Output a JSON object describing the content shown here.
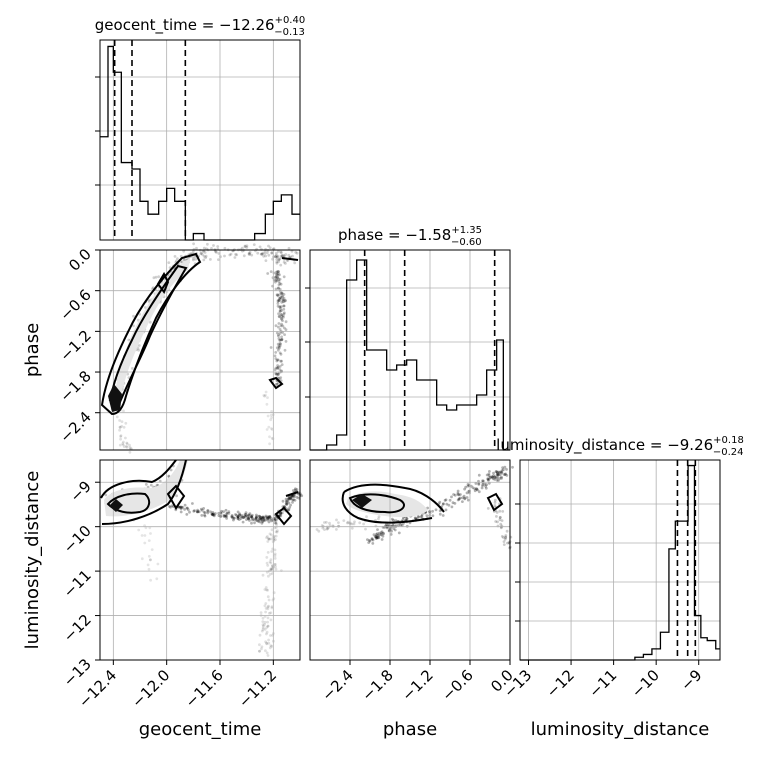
{
  "chart_data": [
    {
      "type": "histogram",
      "panel": "geocent_time",
      "title": {
        "lead": "geocent_time = ",
        "value": "−12.26",
        "plus": "+0.40",
        "minus": "−0.13"
      },
      "xlim": [
        -12.5,
        -11.0
      ],
      "quantile_lines": [
        -12.39,
        -12.26,
        -11.86
      ],
      "bin_edges": [
        -12.5,
        -12.44,
        -12.4,
        -12.34,
        -12.26,
        -12.2,
        -12.14,
        -12.06,
        -12.0,
        -11.94,
        -11.86,
        -11.8,
        -11.72,
        -11.66,
        -11.6,
        -11.54,
        -11.46,
        -11.4,
        -11.34,
        -11.26,
        -11.2,
        -11.14,
        -11.06,
        -11.0
      ],
      "counts": [
        0.16,
        0.3,
        0.26,
        0.12,
        0.11,
        0.06,
        0.04,
        0.06,
        0.08,
        0.06,
        0.0,
        0.01,
        0.0,
        0.0,
        0.0,
        0.0,
        0.0,
        0.0,
        0.01,
        0.04,
        0.06,
        0.07,
        0.04
      ]
    },
    {
      "type": "histogram",
      "panel": "phase",
      "title": {
        "lead": "phase = ",
        "value": "−1.58",
        "plus": "+1.35",
        "minus": "−0.60"
      },
      "xlim": [
        -3.0,
        0.0
      ],
      "quantile_lines": [
        -2.18,
        -1.58,
        -0.23
      ],
      "bin_edges": [
        -3.0,
        -2.9,
        -2.75,
        -2.6,
        -2.45,
        -2.3,
        -2.15,
        -2.0,
        -1.85,
        -1.7,
        -1.55,
        -1.4,
        -1.25,
        -1.1,
        -0.95,
        -0.8,
        -0.65,
        -0.5,
        -0.35,
        -0.2,
        -0.1,
        0.0
      ],
      "counts": [
        0.0,
        0.0,
        0.005,
        0.015,
        0.17,
        0.19,
        0.1,
        0.1,
        0.08,
        0.085,
        0.09,
        0.07,
        0.07,
        0.045,
        0.04,
        0.045,
        0.045,
        0.055,
        0.08,
        0.11,
        0.0
      ]
    },
    {
      "type": "histogram",
      "panel": "luminosity_distance",
      "title": {
        "lead": "luminosity_distance = ",
        "value": "−9.26",
        "plus": "+0.18",
        "minus": "−0.24"
      },
      "xlim": [
        -13.2,
        -8.5
      ],
      "quantile_lines": [
        -9.5,
        -9.26,
        -9.08
      ],
      "bin_edges": [
        -13.2,
        -10.5,
        -10.3,
        -10.1,
        -9.9,
        -9.7,
        -9.55,
        -9.4,
        -9.25,
        -9.1,
        -8.95,
        -8.8,
        -8.6,
        -8.5
      ],
      "counts": [
        0.0,
        0.005,
        0.01,
        0.02,
        0.05,
        0.2,
        0.25,
        0.25,
        0.35,
        0.08,
        0.04,
        0.035,
        0.02
      ]
    },
    {
      "type": "scatter",
      "panel": "geocent_time vs phase",
      "xlim": [
        -12.5,
        -11.0
      ],
      "ylim": [
        -2.95,
        0.0
      ],
      "note": "2D posterior samples with density contours"
    },
    {
      "type": "scatter",
      "panel": "geocent_time vs luminosity_distance",
      "xlim": [
        -12.5,
        -11.0
      ],
      "ylim": [
        -13.0,
        -8.5
      ]
    },
    {
      "type": "scatter",
      "panel": "phase vs luminosity_distance",
      "xlim": [
        -3.0,
        0.0
      ],
      "ylim": [
        -13.0,
        -8.5
      ]
    }
  ],
  "axes": {
    "geocent_time": {
      "label": "geocent_time",
      "ticks": [
        "−12.4",
        "−12.0",
        "−11.6",
        "−11.2"
      ],
      "tick_values": [
        -12.4,
        -12.0,
        -11.6,
        -11.2
      ]
    },
    "phase": {
      "label": "phase",
      "ticks_x": [
        "−2.4",
        "−1.8",
        "−1.2",
        "−0.6",
        "0.0"
      ],
      "tick_values_x": [
        -2.4,
        -1.8,
        -1.2,
        -0.6,
        0.0
      ],
      "ticks_y": [
        "0.0",
        "−0.6",
        "−1.2",
        "−1.8",
        "−2.4"
      ],
      "tick_values_y": [
        0.0,
        -0.6,
        -1.2,
        -1.8,
        -2.4
      ]
    },
    "luminosity_distance": {
      "label": "luminosity_distance",
      "ticks_x": [
        "−13",
        "−12",
        "−11",
        "−10",
        "−9"
      ],
      "tick_values_x": [
        -13,
        -12,
        -11,
        -10,
        -9
      ],
      "ticks_y": [
        "−9",
        "−10",
        "−11",
        "−12",
        "−13"
      ],
      "tick_values_y": [
        -9,
        -10,
        -11,
        -12,
        -13
      ]
    }
  }
}
